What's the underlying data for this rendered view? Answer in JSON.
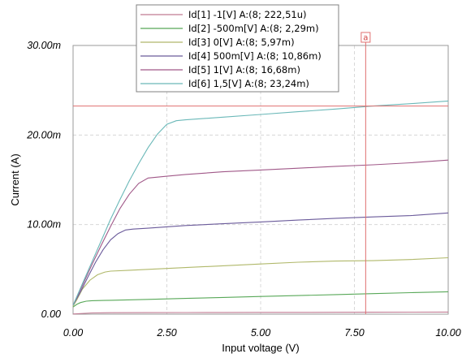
{
  "chart_data": {
    "type": "line",
    "xlabel": "Input voltage (V)",
    "ylabel": "Current (A)",
    "xlim": [
      0,
      10
    ],
    "ylim": [
      0,
      0.03
    ],
    "x_ticks": [
      0,
      2.5,
      5,
      7.5,
      10
    ],
    "x_tick_labels": [
      "0.00",
      "2.50",
      "5.00",
      "7.50",
      "10.00"
    ],
    "y_ticks": [
      0,
      0.01,
      0.02,
      0.03
    ],
    "y_tick_labels": [
      "0.00",
      "10.00m",
      "20.00m",
      "30.00m"
    ],
    "grid": true,
    "legend_position": "top-center",
    "cursor": {
      "label": "a",
      "x": 7.8,
      "y": 0.02324,
      "color": "#e07070"
    },
    "series": [
      {
        "name": "Id[1]  -1[V] A:(8; 222,51u)",
        "color": "#c07a92",
        "x": [
          0,
          0.5,
          1,
          2,
          3,
          4,
          5,
          6,
          7,
          8,
          9,
          10
        ],
        "y": [
          2e-05,
          0.00014,
          0.00016,
          0.00017,
          0.00018,
          0.00019,
          0.0002,
          0.0002,
          0.00021,
          0.00022,
          0.00023,
          0.00024
        ]
      },
      {
        "name": "Id[2]  -500m[V] A:(8; 2,29m)",
        "color": "#58a858",
        "x": [
          0,
          0.1,
          0.2,
          0.35,
          0.5,
          1,
          2,
          3,
          4,
          5,
          6,
          7,
          8,
          9,
          10
        ],
        "y": [
          0.0008,
          0.0011,
          0.0013,
          0.00145,
          0.0015,
          0.00155,
          0.00165,
          0.00176,
          0.00187,
          0.00198,
          0.00208,
          0.00218,
          0.00229,
          0.0024,
          0.0025
        ]
      },
      {
        "name": "Id[3]  0[V] A:(8; 5,97m)",
        "color": "#b0b86a",
        "x": [
          0,
          0.1,
          0.25,
          0.45,
          0.65,
          0.85,
          1,
          1.5,
          2,
          3,
          4,
          5,
          6,
          7,
          8,
          9,
          10
        ],
        "y": [
          0.0009,
          0.0016,
          0.0028,
          0.0038,
          0.0044,
          0.0047,
          0.0048,
          0.0049,
          0.005,
          0.0052,
          0.0054,
          0.0056,
          0.0058,
          0.00593,
          0.00597,
          0.0061,
          0.0063
        ]
      },
      {
        "name": "Id[4]  500m[V] A:(8; 10,86m)",
        "color": "#6a5a9a",
        "x": [
          0,
          0.2,
          0.4,
          0.6,
          0.8,
          1.0,
          1.2,
          1.4,
          1.6,
          2,
          3,
          4,
          5,
          6,
          7,
          8,
          9,
          10
        ],
        "y": [
          0.001,
          0.0025,
          0.0042,
          0.0058,
          0.0072,
          0.0083,
          0.009,
          0.0094,
          0.0095,
          0.0096,
          0.0099,
          0.0101,
          0.0103,
          0.0105,
          0.0107,
          0.01086,
          0.011,
          0.0113
        ]
      },
      {
        "name": "Id[5]  1[V] A:(8; 16,68m)",
        "color": "#a05888",
        "x": [
          0,
          0.25,
          0.5,
          0.75,
          1.0,
          1.25,
          1.5,
          1.75,
          2.0,
          2.5,
          3,
          4,
          5,
          6,
          7,
          8,
          9,
          10
        ],
        "y": [
          0.001,
          0.0032,
          0.0055,
          0.0077,
          0.0098,
          0.0118,
          0.0134,
          0.0146,
          0.0152,
          0.0154,
          0.0156,
          0.0159,
          0.0161,
          0.0163,
          0.0165,
          0.01668,
          0.0169,
          0.0172
        ]
      },
      {
        "name": "Id[6]  1,5[V] A:(8; 23,24m)",
        "color": "#6ab8b8",
        "x": [
          0,
          0.25,
          0.5,
          0.75,
          1.0,
          1.25,
          1.5,
          1.75,
          2.0,
          2.25,
          2.5,
          2.75,
          3,
          4,
          5,
          6,
          7,
          8,
          9,
          10
        ],
        "y": [
          0.001,
          0.0034,
          0.0058,
          0.0082,
          0.0106,
          0.0128,
          0.0149,
          0.0168,
          0.0186,
          0.0201,
          0.0212,
          0.0216,
          0.0217,
          0.022,
          0.0223,
          0.0226,
          0.0229,
          0.02324,
          0.0235,
          0.0238
        ]
      }
    ]
  }
}
